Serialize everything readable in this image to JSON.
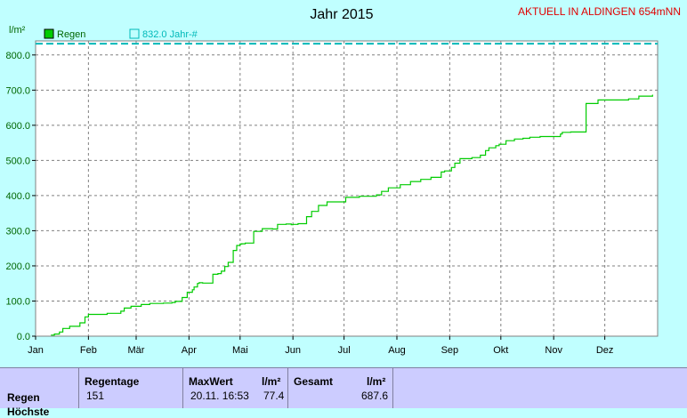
{
  "header": {
    "title": "Jahr 2015",
    "status": "AKTUELL IN ALDINGEN 654mNN",
    "unit": "l/m²"
  },
  "legend": {
    "rain_label": "Regen",
    "reference_label": "832.0 Jahr-#"
  },
  "colors": {
    "background": "#c0ffff",
    "plot_bg": "#ffffff",
    "rain_line": "#00cc00",
    "reference_line": "#00b8b8",
    "grid": "#808080",
    "summary_bg": "#ccccff"
  },
  "chart_data": {
    "type": "line",
    "title": "Jahr 2015",
    "ylabel": "l/m²",
    "xlabel": "",
    "xlim": [
      0,
      365
    ],
    "ylim": [
      0,
      840
    ],
    "y_ticks": [
      "0.0",
      "100.0",
      "200.0",
      "300.0",
      "400.0",
      "500.0",
      "600.0",
      "700.0",
      "800.0"
    ],
    "y_tick_values": [
      0,
      100,
      200,
      300,
      400,
      500,
      600,
      700,
      800
    ],
    "x_tick_labels": [
      "Jan",
      "Feb",
      "Mär",
      "Apr",
      "Mai",
      "Jun",
      "Jul",
      "Aug",
      "Sep",
      "Okt",
      "Nov",
      "Dez"
    ],
    "x_tick_days": [
      0,
      31,
      59,
      90,
      120,
      151,
      181,
      212,
      243,
      273,
      304,
      334
    ],
    "grid": true,
    "legend_position": "top-left",
    "series": [
      {
        "name": "Regen",
        "x": [
          9,
          11,
          14,
          16,
          20,
          26,
          29,
          31,
          42,
          50,
          52,
          56,
          62,
          67,
          75,
          80,
          82,
          86,
          89,
          92,
          93,
          95,
          96,
          98,
          104,
          107,
          109,
          111,
          113,
          116,
          118,
          120,
          121,
          123,
          128,
          133,
          139,
          142,
          147,
          150,
          151,
          154,
          159,
          162,
          166,
          171,
          182,
          190,
          200,
          203,
          207,
          214,
          220,
          226,
          232,
          238,
          240,
          244,
          246,
          249,
          256,
          261,
          264,
          266,
          270,
          272,
          276,
          281,
          286,
          290,
          296,
          308,
          309,
          314,
          320,
          323,
          330,
          348,
          354,
          362
        ],
        "y": [
          3,
          6,
          12,
          22,
          28,
          38,
          55,
          62,
          65,
          71,
          80,
          85,
          90,
          93,
          94,
          96,
          99,
          110,
          125,
          132,
          140,
          150,
          152,
          151,
          176,
          178,
          185,
          198,
          210,
          244,
          258,
          262,
          263,
          265,
          298,
          306,
          305,
          318,
          319,
          317,
          318,
          320,
          340,
          355,
          372,
          382,
          395,
          398,
          402,
          412,
          422,
          431,
          440,
          446,
          452,
          467,
          470,
          480,
          492,
          505,
          508,
          515,
          528,
          536,
          542,
          546,
          556,
          561,
          563,
          566,
          568,
          575,
          580,
          581,
          581,
          662,
          672,
          675,
          683,
          687
        ]
      },
      {
        "name": "832.0 Jahr-#",
        "x": [
          0,
          365
        ],
        "y": [
          832,
          832
        ],
        "style": "dashed"
      }
    ]
  },
  "summary": {
    "row_label": "Regen",
    "row_label_cut": "Höchste",
    "regentage_header": "Regentage",
    "regentage_value": "151",
    "maxwert_header": "MaxWert",
    "maxwert_unit": "l/m²",
    "maxwert_date": "20.11.  16:53",
    "maxwert_value": "77.4",
    "gesamt_header": "Gesamt",
    "gesamt_unit": "l/m²",
    "gesamt_value": "687.6"
  }
}
